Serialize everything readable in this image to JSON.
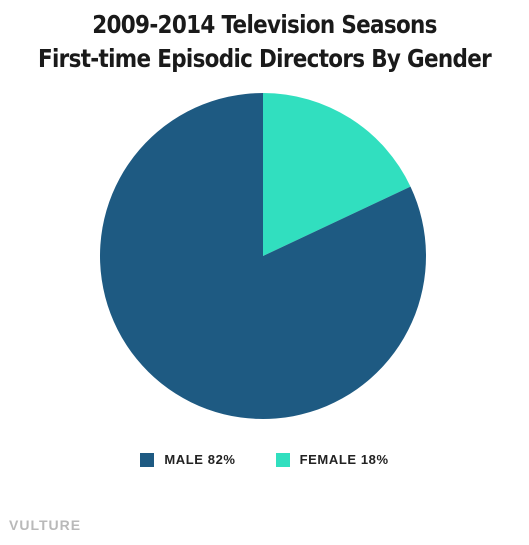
{
  "chart_data": {
    "type": "pie",
    "title": "2009-2014 Television Seasons",
    "subtitle": "First-time Episodic Directors By Gender",
    "slices": [
      {
        "label": "FEMALE",
        "value": 18,
        "color": "#31dfbf"
      },
      {
        "label": "MALE",
        "value": 82,
        "color": "#1e5a82"
      }
    ],
    "legend": [
      {
        "text": "MALE 82%",
        "color": "#1e5a82"
      },
      {
        "text": "FEMALE 18%",
        "color": "#31dfbf"
      }
    ],
    "legend_position": "bottom"
  },
  "branding": {
    "logo_text": "VULTURE"
  }
}
